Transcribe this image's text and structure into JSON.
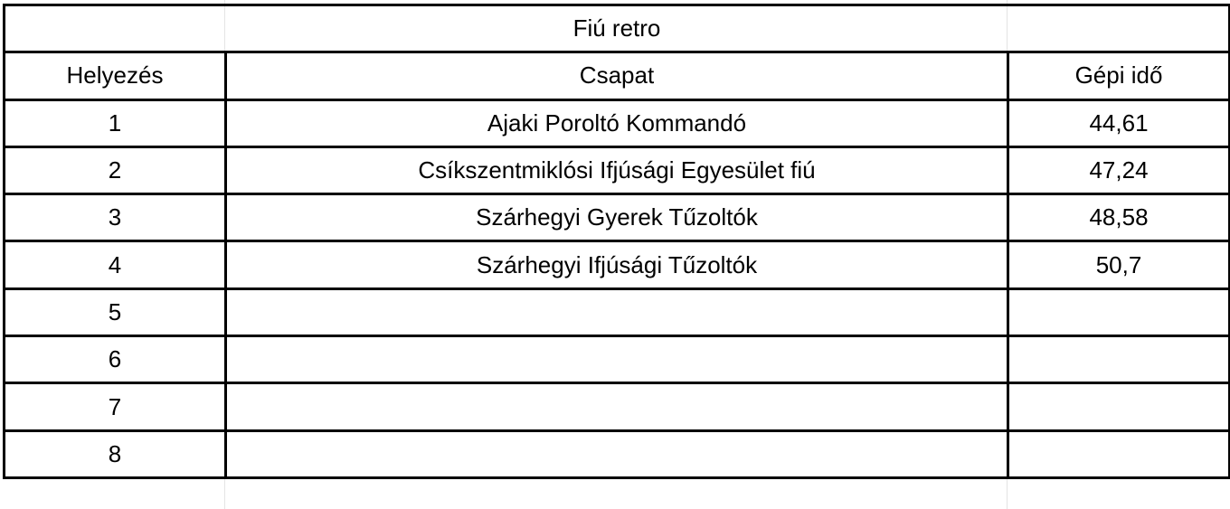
{
  "title": "Fiú retro",
  "headers": [
    "Helyezés",
    "Csapat",
    "Gépi idő"
  ],
  "rows": [
    [
      "1",
      "Ajaki Poroltó Kommandó",
      "44,61"
    ],
    [
      "2",
      "Csíkszentmiklósi Ifjúsági Egyesület fiú",
      "47,24"
    ],
    [
      "3",
      "Szárhegyi Gyerek Tűzoltók",
      "48,58"
    ],
    [
      "4",
      "Szárhegyi Ifjúsági Tűzoltók",
      "50,7"
    ],
    [
      "5",
      "",
      ""
    ],
    [
      "6",
      "",
      ""
    ],
    [
      "7",
      "",
      ""
    ],
    [
      "8",
      "",
      ""
    ]
  ]
}
